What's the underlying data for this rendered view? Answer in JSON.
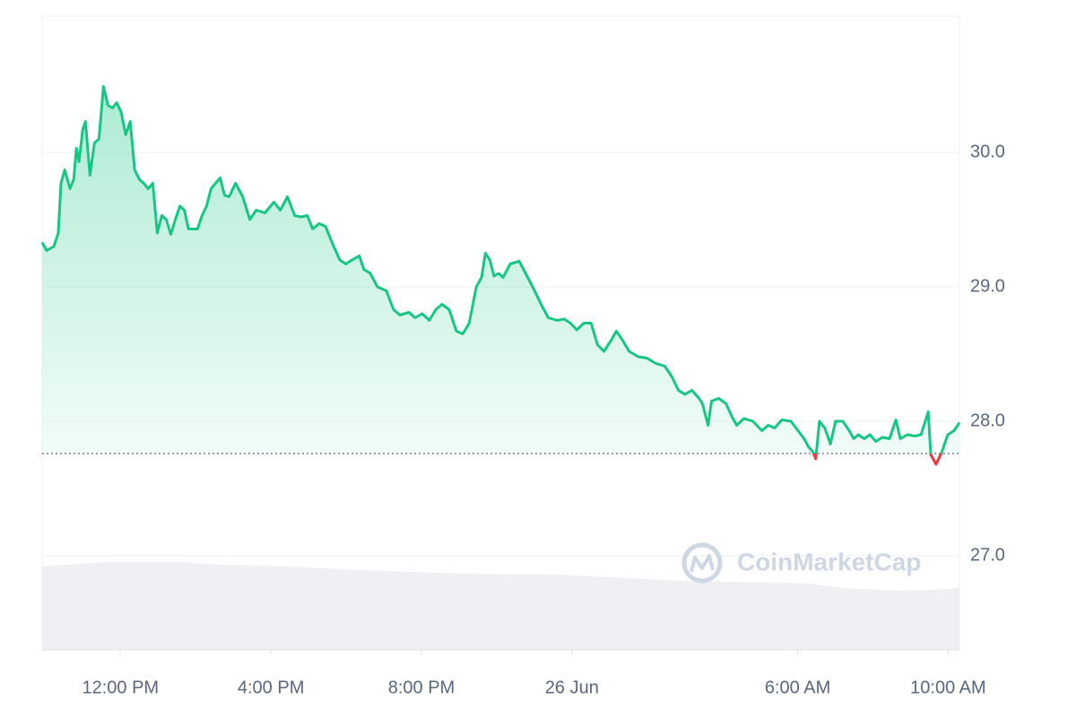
{
  "chart_data": {
    "type": "line",
    "x": [
      9.92,
      10.04,
      10.23,
      10.35,
      10.42,
      10.52,
      10.66,
      10.76,
      10.83,
      10.9,
      11.0,
      11.07,
      11.19,
      11.31,
      11.43,
      11.55,
      11.67,
      11.79,
      11.9,
      12.02,
      12.14,
      12.26,
      12.38,
      12.5,
      12.62,
      12.74,
      12.86,
      12.98,
      13.1,
      13.22,
      13.34,
      13.46,
      13.58,
      13.7,
      13.81,
      13.93,
      14.05,
      14.17,
      14.29,
      14.41,
      14.53,
      14.65,
      14.77,
      14.89,
      15.06,
      15.25,
      15.44,
      15.61,
      15.84,
      16.08,
      16.25,
      16.44,
      16.63,
      16.8,
      16.97,
      17.11,
      17.28,
      17.45,
      17.64,
      17.83,
      17.99,
      18.16,
      18.35,
      18.47,
      18.64,
      18.83,
      19.07,
      19.26,
      19.43,
      19.67,
      19.83,
      20.02,
      20.21,
      20.38,
      20.55,
      20.74,
      20.93,
      21.1,
      21.27,
      21.46,
      21.6,
      21.7,
      21.82,
      21.93,
      22.05,
      22.17,
      22.36,
      22.6,
      22.77,
      23.01,
      23.18,
      23.37,
      23.61,
      23.8,
      23.96,
      24.13,
      24.32,
      24.51,
      24.68,
      24.85,
      25.04,
      25.18,
      25.33,
      25.52,
      25.76,
      25.99,
      26.23,
      26.47,
      26.66,
      26.83,
      27.0,
      27.19,
      27.38,
      27.47,
      27.62,
      27.71,
      27.9,
      28.1,
      28.26,
      28.38,
      28.57,
      28.81,
      29.05,
      29.22,
      29.39,
      29.58,
      29.82,
      30.01,
      30.17,
      30.29,
      30.41,
      30.48,
      30.58,
      30.72,
      30.87,
      31.01,
      31.2,
      31.37,
      31.49,
      31.61,
      31.77,
      31.92,
      32.08,
      32.25,
      32.44,
      32.61,
      32.73,
      32.92,
      33.11,
      33.28,
      33.47,
      33.54,
      33.68,
      33.83,
      33.99,
      34.16,
      34.3
    ],
    "values": [
      29.33,
      29.27,
      29.3,
      29.4,
      29.77,
      29.87,
      29.73,
      29.8,
      30.03,
      29.93,
      30.17,
      30.23,
      29.83,
      30.07,
      30.1,
      30.49,
      30.35,
      30.33,
      30.37,
      30.3,
      30.13,
      30.23,
      29.87,
      29.8,
      29.77,
      29.73,
      29.77,
      29.4,
      29.53,
      29.5,
      29.39,
      29.5,
      29.6,
      29.57,
      29.43,
      29.43,
      29.43,
      29.53,
      29.6,
      29.73,
      29.77,
      29.81,
      29.68,
      29.67,
      29.77,
      29.67,
      29.5,
      29.57,
      29.55,
      29.63,
      29.57,
      29.67,
      29.53,
      29.52,
      29.53,
      29.43,
      29.47,
      29.45,
      29.32,
      29.2,
      29.17,
      29.2,
      29.23,
      29.13,
      29.1,
      29.0,
      28.97,
      28.83,
      28.79,
      28.81,
      28.77,
      28.8,
      28.75,
      28.83,
      28.87,
      28.83,
      28.67,
      28.65,
      28.73,
      29.0,
      29.07,
      29.25,
      29.2,
      29.08,
      29.1,
      29.07,
      29.17,
      29.19,
      29.1,
      28.97,
      28.87,
      28.77,
      28.75,
      28.76,
      28.73,
      28.68,
      28.73,
      28.73,
      28.57,
      28.52,
      28.6,
      28.67,
      28.61,
      28.52,
      28.48,
      28.47,
      28.43,
      28.41,
      28.33,
      28.23,
      28.2,
      28.23,
      28.17,
      28.13,
      27.97,
      28.15,
      28.17,
      28.13,
      28.03,
      27.97,
      28.02,
      28.0,
      27.93,
      27.97,
      27.95,
      28.01,
      28.0,
      27.93,
      27.87,
      27.81,
      27.77,
      27.72,
      28.0,
      27.95,
      27.83,
      28.0,
      28.0,
      27.93,
      27.87,
      27.9,
      27.87,
      27.9,
      27.85,
      27.88,
      27.87,
      28.01,
      27.87,
      27.9,
      27.89,
      27.9,
      28.07,
      27.75,
      27.68,
      27.77,
      27.9,
      27.93,
      27.99
    ],
    "color": "#16c784",
    "down_color": "#ea3943",
    "baseline": 27.76,
    "xlim": [
      9.92,
      34.3
    ],
    "xticks": [
      {
        "value": 12,
        "label": "12:00 PM"
      },
      {
        "value": 16,
        "label": "4:00 PM"
      },
      {
        "value": 20,
        "label": "8:00 PM"
      },
      {
        "value": 24,
        "label": "26 Jun"
      },
      {
        "value": 30,
        "label": "6:00 AM"
      },
      {
        "value": 34,
        "label": "10:00 AM"
      }
    ],
    "ylim": [
      26.3,
      31.0
    ],
    "yticks": [
      {
        "value": 27,
        "label": "27.0"
      },
      {
        "value": 28,
        "label": "28.0"
      },
      {
        "value": 29,
        "label": "29.0"
      },
      {
        "value": 30,
        "label": "30.0"
      }
    ],
    "grid": true,
    "watermark": "CoinMarketCap"
  }
}
